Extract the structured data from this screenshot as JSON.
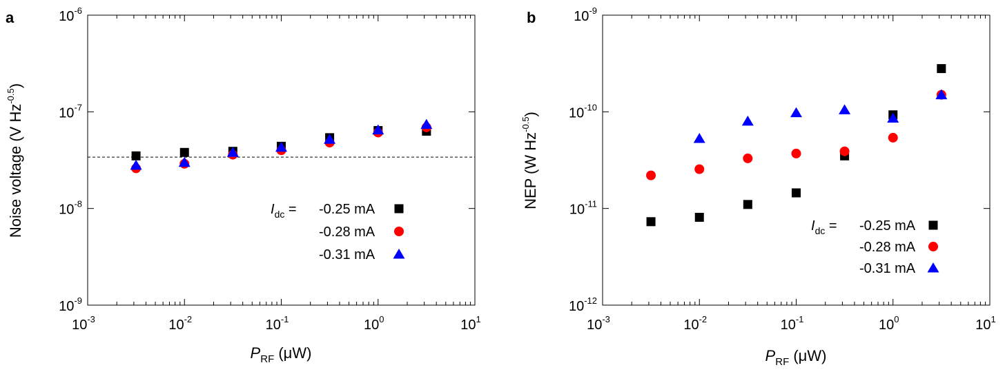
{
  "chart_data": [
    {
      "panel": "a",
      "type": "scatter",
      "x_scale": "log",
      "y_scale": "log",
      "xlim": [
        0.001,
        10
      ],
      "ylim": [
        1e-09,
        1e-06
      ],
      "xlabel": {
        "main": "P",
        "sub": "RF",
        "unit": " (μW)"
      },
      "ylabel": {
        "text": "Noise voltage (V Hz",
        "sup": "-0.5",
        "close": ")"
      },
      "x_ticks": [
        {
          "exp": "-3"
        },
        {
          "exp": "-2"
        },
        {
          "exp": "-1"
        },
        {
          "exp": "0"
        },
        {
          "exp": "1"
        }
      ],
      "y_ticks": [
        {
          "exp": "-9"
        },
        {
          "exp": "-8"
        },
        {
          "exp": "-7"
        },
        {
          "exp": "-6"
        }
      ],
      "tick_base": "10",
      "reference_line": {
        "y": 3.4e-08,
        "style": "dashed"
      },
      "legend_prefix": {
        "main": "I",
        "sub": "dc",
        "eq": " ="
      },
      "legend_position": "lower-right",
      "series": [
        {
          "name": "-0.25 mA",
          "marker": "square",
          "color": "#000000",
          "x": [
            0.00316,
            0.01,
            0.0316,
            0.1,
            0.316,
            1.0,
            3.16
          ],
          "y": [
            3.5e-08,
            3.8e-08,
            3.9e-08,
            4.4e-08,
            5.4e-08,
            6.4e-08,
            6.3e-08
          ]
        },
        {
          "name": "-0.28 mA",
          "marker": "circle",
          "color": "#ff0000",
          "x": [
            0.00316,
            0.01,
            0.0316,
            0.1,
            0.316,
            1.0,
            3.16
          ],
          "y": [
            2.6e-08,
            2.9e-08,
            3.6e-08,
            4e-08,
            4.8e-08,
            6.1e-08,
            6.9e-08
          ]
        },
        {
          "name": "-0.31 mA",
          "marker": "triangle",
          "color": "#0000ff",
          "x": [
            0.00316,
            0.01,
            0.0316,
            0.1,
            0.316,
            1.0,
            3.16
          ],
          "y": [
            2.8e-08,
            3e-08,
            3.8e-08,
            4.3e-08,
            5.2e-08,
            6.5e-08,
            7.4e-08
          ]
        }
      ]
    },
    {
      "panel": "b",
      "type": "scatter",
      "x_scale": "log",
      "y_scale": "log",
      "xlim": [
        0.001,
        10
      ],
      "ylim": [
        1e-12,
        1e-09
      ],
      "xlabel": {
        "main": "P",
        "sub": "RF",
        "unit": " (μW)"
      },
      "ylabel": {
        "text": "NEP (W Hz",
        "sup": "-0.5",
        "close": ")"
      },
      "x_ticks": [
        {
          "exp": "-3"
        },
        {
          "exp": "-2"
        },
        {
          "exp": "-1"
        },
        {
          "exp": "0"
        },
        {
          "exp": "1"
        }
      ],
      "y_ticks": [
        {
          "exp": "-12"
        },
        {
          "exp": "-11"
        },
        {
          "exp": "-10"
        },
        {
          "exp": "-9"
        }
      ],
      "tick_base": "10",
      "legend_prefix": {
        "main": "I",
        "sub": "dc",
        "eq": " ="
      },
      "legend_position": "lower-right",
      "series": [
        {
          "name": "-0.25 mA",
          "marker": "square",
          "color": "#000000",
          "x": [
            0.00316,
            0.01,
            0.0316,
            0.1,
            0.316,
            1.0,
            3.16
          ],
          "y": [
            7.3e-12,
            8.1e-12,
            1.1e-11,
            1.45e-11,
            3.5e-11,
            9.3e-11,
            2.8e-10
          ]
        },
        {
          "name": "-0.28 mA",
          "marker": "circle",
          "color": "#ff0000",
          "x": [
            0.00316,
            0.01,
            0.0316,
            0.1,
            0.316,
            1.0,
            3.16
          ],
          "y": [
            2.2e-11,
            2.55e-11,
            3.3e-11,
            3.7e-11,
            3.9e-11,
            5.4e-11,
            1.5e-10
          ]
        },
        {
          "name": "-0.31 mA",
          "marker": "triangle",
          "color": "#0000ff",
          "x": [
            0.01,
            0.0316,
            0.1,
            0.316,
            1.0,
            3.16
          ],
          "y": [
            5.3e-11,
            8e-11,
            9.8e-11,
            1.05e-10,
            8.6e-11,
            1.5e-10
          ]
        }
      ]
    }
  ]
}
